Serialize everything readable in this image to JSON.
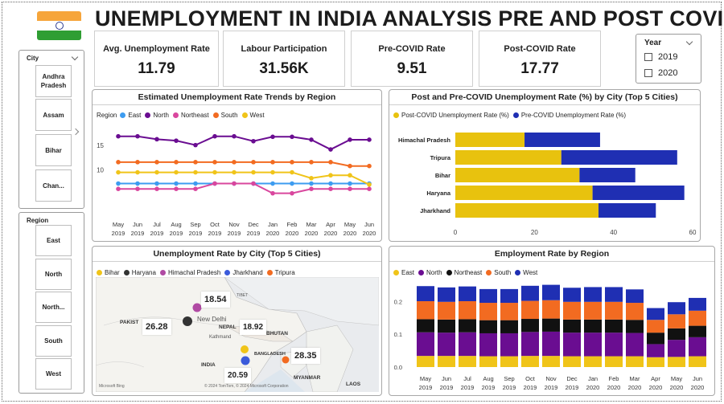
{
  "header": {
    "title": "UNEMPLOYMENT IN INDIA ANALYSIS PRE AND POST COVID"
  },
  "kpis": [
    {
      "label": "Avg. Unemployment Rate",
      "value": "11.79"
    },
    {
      "label": "Labour Participation",
      "value": "31.56K"
    },
    {
      "label": "Pre-COVID Rate",
      "value": "9.51"
    },
    {
      "label": "Post-COVID Rate",
      "value": "17.77"
    }
  ],
  "year_slicer": {
    "title": "Year",
    "options": [
      "2019",
      "2020"
    ]
  },
  "city_slicer": {
    "title": "City",
    "items": [
      "Andhra Pradesh",
      "Assam",
      "Bihar",
      "Chan..."
    ]
  },
  "region_slicer": {
    "title": "Region",
    "items": [
      "East",
      "North",
      "North...",
      "South",
      "West"
    ]
  },
  "colors": {
    "east": "#3d9cf0",
    "north": "#6a0d91",
    "northeast": "#d9479e",
    "south": "#f26b21",
    "west": "#f0c419",
    "post": "#e8c20e",
    "pre": "#1f2fb3",
    "jharkhand_dot": "#3b5bdb"
  },
  "chart_data": [
    {
      "type": "line",
      "title": "Estimated Unemployment Rate Trends by Region",
      "legend_title": "Region",
      "x": [
        [
          "May",
          "2019"
        ],
        [
          "Jun",
          "2019"
        ],
        [
          "Jul",
          "2019"
        ],
        [
          "Aug",
          "2019"
        ],
        [
          "Sep",
          "2019"
        ],
        [
          "Oct",
          "2019"
        ],
        [
          "Nov",
          "2019"
        ],
        [
          "Dec",
          "2019"
        ],
        [
          "Jan",
          "2020"
        ],
        [
          "Feb",
          "2020"
        ],
        [
          "Mar",
          "2020"
        ],
        [
          "Apr",
          "2020"
        ],
        [
          "May",
          "2020"
        ],
        [
          "Jun",
          "2020"
        ]
      ],
      "y_ticks": [
        "10",
        "15"
      ],
      "ylim": [
        3,
        18.5
      ],
      "series": [
        {
          "name": "East",
          "color": "#3d9cf0",
          "values": [
            7.2,
            7.2,
            7.2,
            7.2,
            7.2,
            7.2,
            7.2,
            7.2,
            7.2,
            7.2,
            7.2,
            7.2,
            7.2,
            7.2
          ]
        },
        {
          "name": "North",
          "color": "#6a0d91",
          "values": [
            16.9,
            16.9,
            16.3,
            16.0,
            15.1,
            16.9,
            16.9,
            15.9,
            16.8,
            16.8,
            16.2,
            14.2,
            16.2,
            16.2
          ]
        },
        {
          "name": "Northeast",
          "color": "#d9479e",
          "values": [
            6.1,
            6.1,
            6.1,
            6.1,
            6.1,
            7.2,
            7.2,
            7.2,
            5.2,
            5.2,
            6.1,
            6.1,
            6.1,
            6.1
          ]
        },
        {
          "name": "South",
          "color": "#f26b21",
          "values": [
            11.6,
            11.6,
            11.6,
            11.6,
            11.6,
            11.6,
            11.6,
            11.6,
            11.6,
            11.6,
            11.6,
            11.6,
            10.8,
            10.8
          ]
        },
        {
          "name": "West",
          "color": "#f0c419",
          "values": [
            9.5,
            9.5,
            9.5,
            9.5,
            9.5,
            9.5,
            9.5,
            9.5,
            9.5,
            9.5,
            8.3,
            8.9,
            8.9,
            7.0
          ]
        }
      ]
    },
    {
      "type": "bar",
      "orientation": "horizontal",
      "stacked": true,
      "title": "Post and Pre-COVID Unemployment Rate (%) by City (Top 5 Cities)",
      "categories": [
        "Himachal Pradesh",
        "Tripura",
        "Bihar",
        "Haryana",
        "Jharkhand"
      ],
      "series": [
        {
          "name": "Post-COVID Unemployment Rate (%)",
          "color": "#e8c20e",
          "values": [
            17.5,
            26.8,
            31.4,
            34.7,
            36.2
          ]
        },
        {
          "name": "Pre-COVID Unemployment Rate (%)",
          "color": "#1f2fb3",
          "values": [
            19.1,
            29.3,
            14.1,
            23.2,
            14.5
          ]
        }
      ],
      "x_ticks": [
        0,
        20,
        40,
        60
      ],
      "xlim": [
        0,
        60
      ]
    },
    {
      "type": "map",
      "title": "Unemployment Rate by City (Top 5 Cities)",
      "legend": [
        {
          "name": "Bihar",
          "color": "#f0c419"
        },
        {
          "name": "Haryana",
          "color": "#333333"
        },
        {
          "name": "Himachal Pradesh",
          "color": "#b04aa3"
        },
        {
          "name": "Jharkhand",
          "color": "#3b5bdb"
        },
        {
          "name": "Tripura",
          "color": "#f26b21"
        }
      ],
      "callouts": [
        "18.54",
        "26.28",
        "18.92",
        "28.35",
        "20.59"
      ],
      "place_labels": [
        "PAKIST",
        "New Delhi",
        "NEPAL",
        "Kathmand",
        "BHUTAN",
        "BANGLADESH",
        "INDIA",
        "MYANMAR",
        "LAOS",
        "TIBET"
      ],
      "attribution": [
        "Microsoft Bing",
        "© 2024 TomTom, © 2024 Microsoft Corporation"
      ]
    },
    {
      "type": "bar",
      "stacked": true,
      "title": "Employment Rate by Region",
      "categories": [
        [
          "May",
          "2019"
        ],
        [
          "Jun",
          "2019"
        ],
        [
          "Jul",
          "2019"
        ],
        [
          "Aug",
          "2019"
        ],
        [
          "Sep",
          "2019"
        ],
        [
          "Oct",
          "2019"
        ],
        [
          "Nov",
          "2019"
        ],
        [
          "Dec",
          "2019"
        ],
        [
          "Jan",
          "2020"
        ],
        [
          "Feb",
          "2020"
        ],
        [
          "Mar",
          "2020"
        ],
        [
          "Apr",
          "2020"
        ],
        [
          "May",
          "2020"
        ],
        [
          "Jun",
          "2020"
        ]
      ],
      "y_ticks": [
        "0.0",
        "0.1",
        "0.2"
      ],
      "ylim": [
        0,
        0.25
      ],
      "series": [
        {
          "name": "East",
          "color": "#f0c419",
          "values": [
            0.034,
            0.034,
            0.034,
            0.033,
            0.033,
            0.034,
            0.034,
            0.033,
            0.033,
            0.033,
            0.033,
            0.03,
            0.031,
            0.033
          ]
        },
        {
          "name": "North",
          "color": "#6a0d91",
          "values": [
            0.072,
            0.071,
            0.072,
            0.07,
            0.07,
            0.073,
            0.074,
            0.072,
            0.072,
            0.072,
            0.071,
            0.04,
            0.052,
            0.058
          ]
        },
        {
          "name": "Northeast",
          "color": "#111111",
          "values": [
            0.04,
            0.04,
            0.04,
            0.04,
            0.04,
            0.04,
            0.04,
            0.04,
            0.04,
            0.04,
            0.04,
            0.035,
            0.035,
            0.035
          ]
        },
        {
          "name": "South",
          "color": "#f26b21",
          "values": [
            0.055,
            0.054,
            0.055,
            0.053,
            0.053,
            0.055,
            0.056,
            0.054,
            0.054,
            0.054,
            0.052,
            0.039,
            0.043,
            0.046
          ]
        },
        {
          "name": "West",
          "color": "#1f2fb3",
          "values": [
            0.046,
            0.044,
            0.045,
            0.042,
            0.042,
            0.046,
            0.047,
            0.043,
            0.045,
            0.045,
            0.041,
            0.036,
            0.037,
            0.039
          ]
        }
      ]
    }
  ]
}
